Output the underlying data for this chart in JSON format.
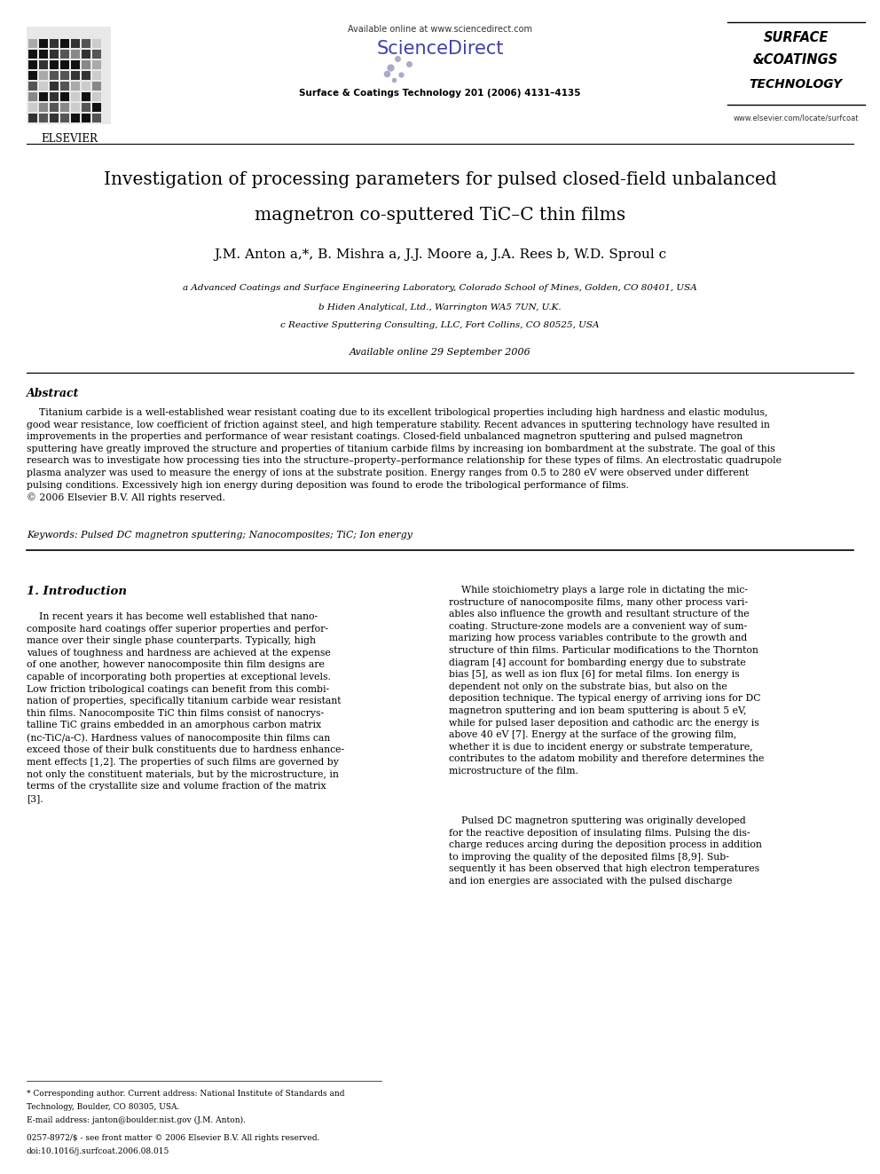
{
  "page_title_line1": "Investigation of processing parameters for pulsed closed-field unbalanced",
  "page_title_line2": "magnetron co-sputtered TiC–C thin films",
  "authors_display": "J.M. Anton a,*, B. Mishra a, J.J. Moore a, J.A. Rees b, W.D. Sproul c",
  "affil_a": "a Advanced Coatings and Surface Engineering Laboratory, Colorado School of Mines, Golden, CO 80401, USA",
  "affil_b": "b Hiden Analytical, Ltd., Warrington WA5 7UN, U.K.",
  "affil_c": "c Reactive Sputtering Consulting, LLC, Fort Collins, CO 80525, USA",
  "available_online": "Available online 29 September 2006",
  "journal_header": "Available online at www.sciencedirect.com",
  "journal_name": "Surface & Coatings Technology 201 (2006) 4131–4135",
  "journal_url": "www.elsevier.com/locate/surfcoat",
  "elsevier_label": "ELSEVIER",
  "sciencedirect_label": "ScienceDirect",
  "abstract_title": "Abstract",
  "abstract_text": "    Titanium carbide is a well-established wear resistant coating due to its excellent tribological properties including high hardness and elastic modulus, good wear resistance, low coefficient of friction against steel, and high temperature stability. Recent advances in sputtering technology have resulted in improvements in the properties and performance of wear resistant coatings. Closed-field unbalanced magnetron sputtering and pulsed magnetron sputtering have greatly improved the structure and properties of titanium carbide films by increasing ion bombardment at the substrate. The goal of this research was to investigate how processing ties into the structure–property–performance relationship for these types of films. An electrostatic quadrupole plasma analyzer was used to measure the energy of ions at the substrate position. Energy ranges from 0.5 to 280 eV were observed under different pulsing conditions. Excessively high ion energy during deposition was found to erode the tribological performance of films.\n© 2006 Elsevier B.V. All rights reserved.",
  "keywords_text": "Keywords: Pulsed DC magnetron sputtering; Nanocomposites; TiC; Ion energy",
  "intro_title": "1. Introduction",
  "intro_col1_para1": "    In recent years it has become well established that nanocomposite hard coatings offer superior properties and performance over their single phase counterparts. Typically, high values of toughness and hardness are achieved at the expense of one another, however nanocomposite thin film designs are capable of incorporating both properties at exceptional levels. Low friction tribological coatings can benefit from this combination of properties, specifically titanium carbide wear resistant thin films. Nanocomposite TiC thin films consist of nanocrystalline TiC grains embedded in an amorphous carbon matrix (nc-TiC/a-C). Hardness values of nanocomposite thin films can exceed those of their bulk constituents due to hardness enhancement effects [1,2]. The properties of such films are governed by not only the constituent materials, but by the microstructure, in terms of the crystallite size and volume fraction of the matrix [3].",
  "intro_col2_para1": "    While stoichiometry plays a large role in dictating the microstructure of nanocomposite films, many other process variables also influence the growth and resultant structure of the coating. Structure-zone models are a convenient way of summarizing how process variables contribute to the growth and structure of thin films. Particular modifications to the Thornton diagram [4] account for bombarding energy due to substrate bias [5], as well as ion flux [6] for metal films. Ion energy is dependent not only on the substrate bias, but also on the deposition technique. The typical energy of arriving ions for DC magnetron sputtering and ion beam sputtering is about 5 eV, while for pulsed laser deposition and cathodic arc the energy is above 40 eV [7]. Energy at the surface of the growing film, whether it is due to incident energy or substrate temperature, contributes to the adatom mobility and therefore determines the microstructure of the film.",
  "intro_col2_para2": "    Pulsed DC magnetron sputtering was originally developed for the reactive deposition of insulating films. Pulsing the discharge reduces arcing during the deposition process in addition to improving the quality of the deposited films [8,9]. Subsequently it has been observed that high electron temperatures and ion energies are associated with the pulsed discharge",
  "footnote_star": "* Corresponding author. Current address: National Institute of Standards and Technology, Boulder, CO 80305, USA.",
  "footnote_email": "E-mail address: janton@boulder.nist.gov (J.M. Anton).",
  "footnote_issn": "0257-8972/$ - see front matter © 2006 Elsevier B.V. All rights reserved.",
  "footnote_doi": "doi:10.1016/j.surfcoat.2006.08.015",
  "background_color": "#ffffff",
  "text_color": "#000000"
}
